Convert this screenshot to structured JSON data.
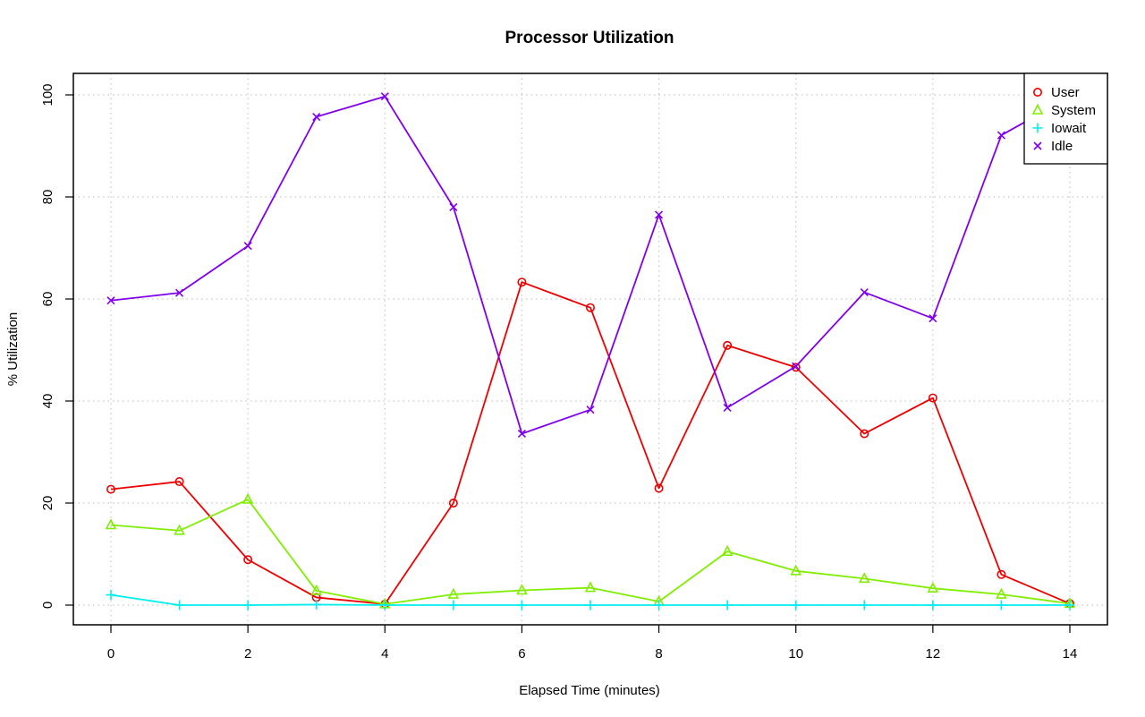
{
  "chart_data": {
    "type": "line",
    "title": "Processor Utilization",
    "xlabel": "Elapsed Time (minutes)",
    "ylabel": "% Utilization",
    "xlim": [
      0,
      14
    ],
    "ylim": [
      0,
      100
    ],
    "x_ticks": [
      0,
      2,
      4,
      6,
      8,
      10,
      12,
      14
    ],
    "y_ticks": [
      0,
      20,
      40,
      60,
      80,
      100
    ],
    "grid": true,
    "legend_position": "top-right",
    "x": [
      0,
      1,
      2,
      3,
      4,
      5,
      6,
      7,
      8,
      9,
      10,
      11,
      12,
      13,
      14
    ],
    "series": [
      {
        "name": "User",
        "color": "#ee0000",
        "marker": "circle",
        "values": [
          22.7,
          24.2,
          8.9,
          1.5,
          0.2,
          20.0,
          63.3,
          58.3,
          22.9,
          50.9,
          46.6,
          33.6,
          40.6,
          6.0,
          0.3
        ]
      },
      {
        "name": "System",
        "color": "#80ee00",
        "marker": "triangle",
        "values": [
          15.7,
          14.6,
          20.7,
          2.8,
          0.2,
          2.1,
          2.9,
          3.4,
          0.7,
          10.5,
          6.7,
          5.2,
          3.3,
          2.1,
          0.3
        ]
      },
      {
        "name": "Iowait",
        "color": "#00eeee",
        "marker": "plus",
        "values": [
          2.0,
          0.0,
          0.0,
          0.1,
          0.0,
          0.0,
          0.0,
          0.0,
          0.0,
          0.0,
          0.0,
          0.0,
          0.0,
          0.0,
          0.0
        ]
      },
      {
        "name": "Idle",
        "color": "#8000ee",
        "marker": "x",
        "values": [
          59.7,
          61.2,
          70.4,
          95.7,
          99.7,
          78.0,
          33.6,
          38.3,
          76.5,
          38.7,
          46.8,
          61.3,
          56.2,
          92.1,
          99.6
        ]
      }
    ]
  }
}
